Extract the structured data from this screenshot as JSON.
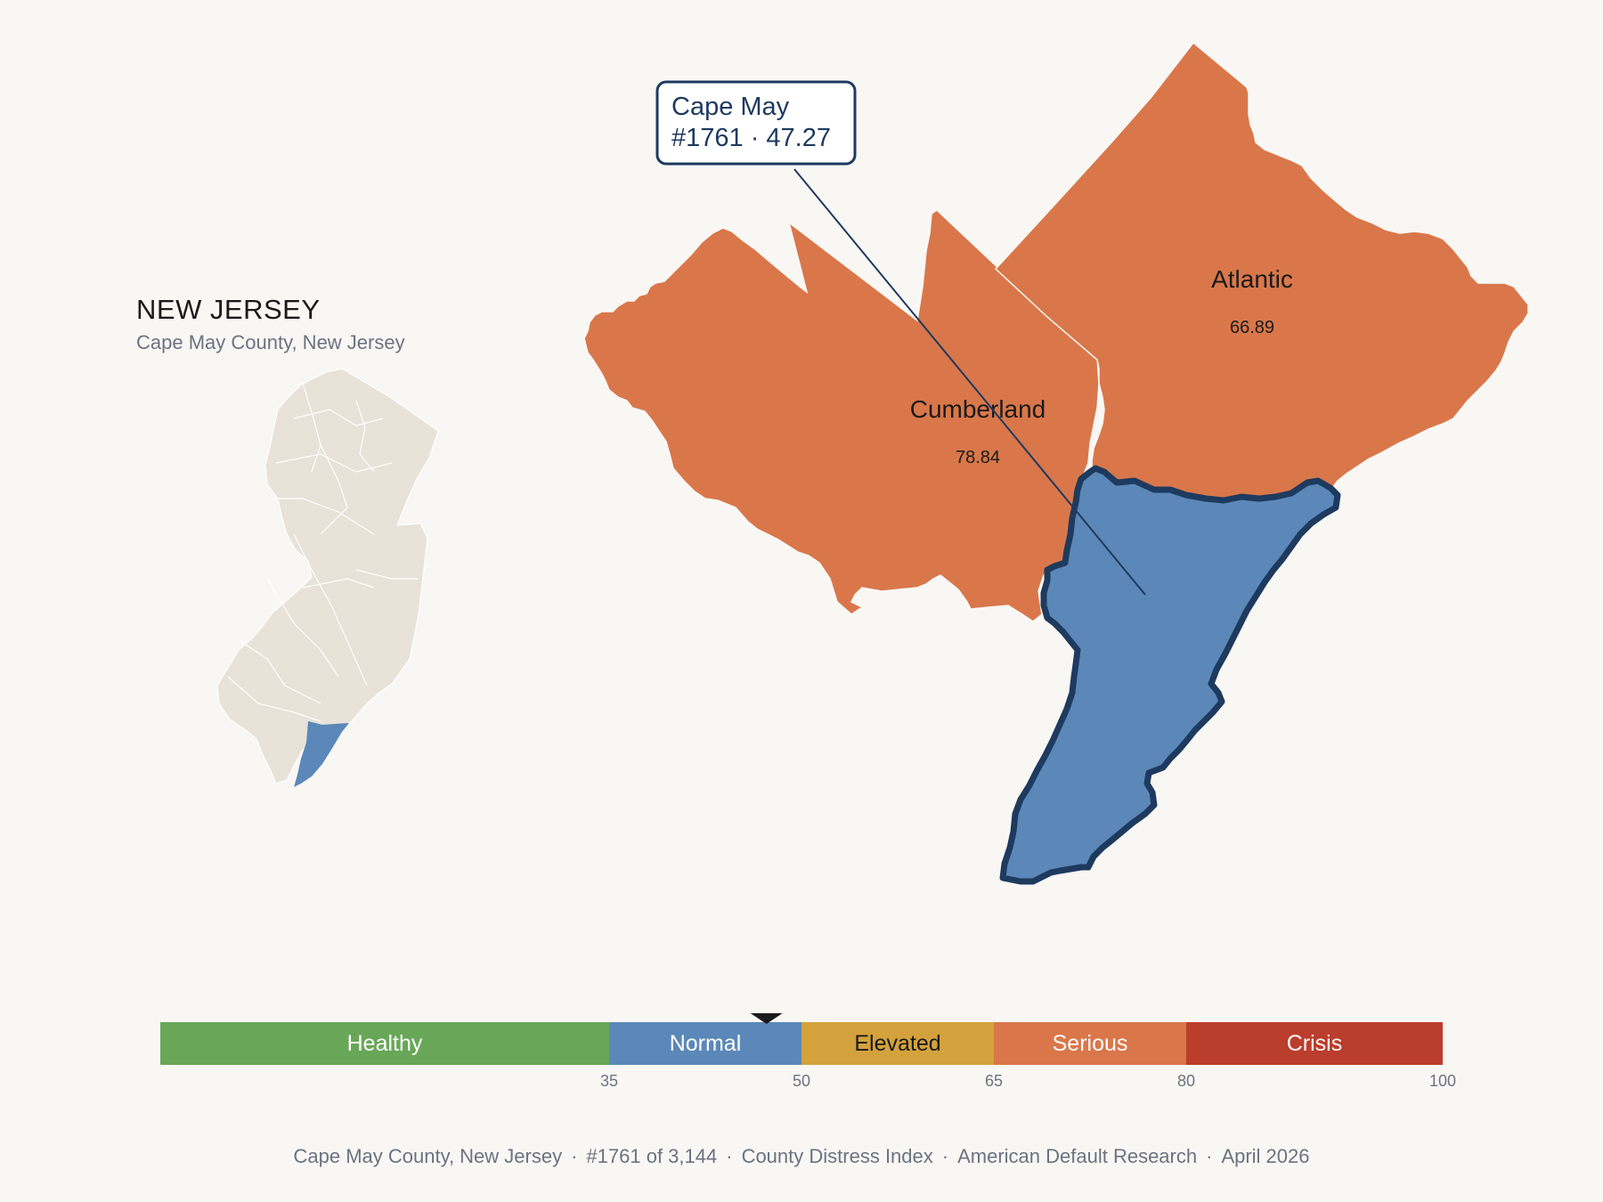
{
  "header": {
    "state_title": "NEW JERSEY",
    "subtitle": "Cape May County, New Jersey"
  },
  "map": {
    "counties": [
      {
        "name": "Cumberland",
        "value": "78.84",
        "category": "Serious",
        "color": "#d9774a"
      },
      {
        "name": "Atlantic",
        "value": "66.89",
        "category": "Serious",
        "color": "#d9774a"
      },
      {
        "name": "Cape May",
        "value": "47.27",
        "category": "Normal",
        "color": "#5b88b8",
        "highlighted": true
      }
    ],
    "callout": {
      "line1": "Cape May",
      "line2": "#1761 · 47.27"
    },
    "highlight_outline_color": "#1e3a5f",
    "inset_fill": "#e8e2d8",
    "inset_highlight": "#5b88b8"
  },
  "legend": {
    "marker_value": 47.27,
    "bands": [
      {
        "label": "Healthy",
        "min": 0,
        "max": 35,
        "color": "#68a758",
        "text_color": "#ffffff"
      },
      {
        "label": "Normal",
        "min": 35,
        "max": 50,
        "color": "#5b88b8",
        "text_color": "#ffffff"
      },
      {
        "label": "Elevated",
        "min": 50,
        "max": 65,
        "color": "#d4a23c",
        "text_color": "#1a1a1a"
      },
      {
        "label": "Serious",
        "min": 65,
        "max": 80,
        "color": "#d9774a",
        "text_color": "#ffffff"
      },
      {
        "label": "Crisis",
        "min": 80,
        "max": 100,
        "color": "#bb3d2c",
        "text_color": "#ffffff"
      }
    ],
    "ticks": [
      "35",
      "50",
      "65",
      "80",
      "100"
    ]
  },
  "footer": {
    "county": "Cape May County, New Jersey",
    "rank": "#1761 of 3,144",
    "index": "County Distress Index",
    "source": "American Default Research",
    "date": "April 2026"
  }
}
